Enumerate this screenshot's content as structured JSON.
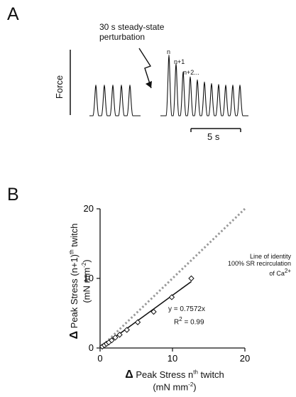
{
  "panelA": {
    "letter": "A",
    "perturbation_line1": "30 s steady-state",
    "perturbation_line2": "perturbation",
    "ylabel": "Force",
    "labels": [
      "n",
      "n+1",
      "n+2..."
    ],
    "scalebar": "5 s",
    "twitches": {
      "before": [
        1,
        1,
        1,
        1,
        1
      ],
      "after": [
        1.98,
        1.7,
        1.43,
        1.27,
        1.17,
        1.1,
        1.05,
        1.02,
        1.0,
        1.0,
        1.0
      ]
    }
  },
  "panelB": {
    "letter": "B",
    "ylabel_line1": "Peak Stress (n+1)",
    "ylabel_sup1": "th",
    "ylabel_line1_end": " twitch",
    "ylabel_line2": "(mN mm",
    "ylabel_line2_sup": "-2",
    "ylabel_line2_end": ")",
    "xlabel_line1": "Peak Stress n",
    "xlabel_sup1": "th",
    "xlabel_line1_end": " twitch",
    "xlabel_line2": "(mN mm",
    "xlabel_line2_sup": "-2",
    "xlabel_line2_end": ")",
    "delta": "Δ",
    "identity_line1": "Line of identity",
    "identity_line2": "100% SR recirculation",
    "identity_line3": "of Ca",
    "identity_line3_sup": "2+",
    "equation": "y = 0.7572x",
    "r2_prefix": "R",
    "r2_sup": "2",
    "r2_suffix": " = 0.99"
  },
  "chart_data": {
    "type": "scatter",
    "xlim": [
      0,
      20
    ],
    "ylim": [
      0,
      20
    ],
    "xticks": [
      0,
      10,
      20
    ],
    "yticks": [
      0,
      10,
      20
    ],
    "series": [
      {
        "x": [
          0.3,
          0.6,
          0.9,
          1.2,
          1.6,
          2.1,
          2.7,
          3.7,
          5.2,
          7.4,
          9.9,
          12.6
        ],
        "y": [
          0.2,
          0.4,
          0.6,
          0.8,
          1.1,
          1.5,
          1.9,
          2.6,
          3.7,
          5.2,
          7.3,
          10.0
        ]
      }
    ],
    "fit": {
      "slope": 0.7572,
      "x_range": [
        0,
        12.6
      ]
    },
    "identity": {
      "slope": 1,
      "x_range": [
        0,
        20
      ],
      "style": "dotted",
      "color": "#9a9a9a"
    }
  }
}
